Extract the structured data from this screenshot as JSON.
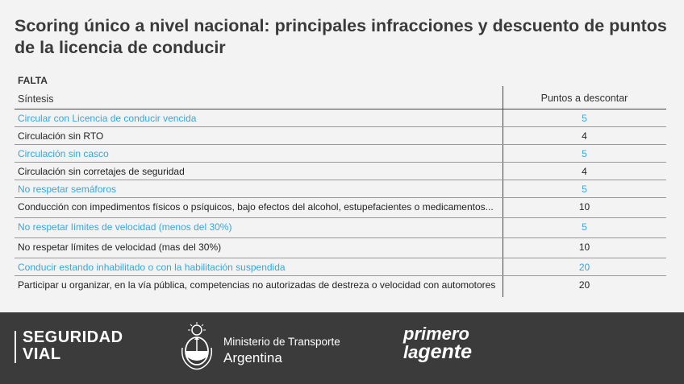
{
  "title": "Scoring único a nivel nacional: principales infracciones y descuento de puntos de la licencia de conducir",
  "table": {
    "group_label": "FALTA",
    "col_sintesis": "Síntesis",
    "col_puntos": "Puntos a descontar",
    "rows": [
      {
        "text": "Circular con Licencia de conducir vencida",
        "points": "5"
      },
      {
        "text": "Circulación sin RTO",
        "points": "4"
      },
      {
        "text": "Circulación sin casco",
        "points": "5"
      },
      {
        "text": "Circulación sin corretajes de seguridad",
        "points": "4"
      },
      {
        "text": "No respetar semáforos",
        "points": "5"
      },
      {
        "text": "Conducción con impedimentos físicos o psíquicos, bajo efectos del alcohol, estupefacientes o medicamentos...",
        "points": "10"
      },
      {
        "text": "No respetar límites de velocidad (menos del 30%)",
        "points": "5"
      },
      {
        "text": "No respetar límites de velocidad (mas del 30%)",
        "points": "10"
      },
      {
        "text": "Conducir estando inhabilitado o con la habilitación suspendida",
        "points": "20"
      },
      {
        "text": "Participar u organizar, en la vía pública, competencias no autorizadas de destreza o velocidad con automotores",
        "points": "20"
      }
    ]
  },
  "footer": {
    "seguridad_line1": "SEGURIDAD",
    "seguridad_line2": "VIAL",
    "ministerio_line1": "Ministerio de Transporte",
    "ministerio_line2": "Argentina",
    "slogan_line1": "primero",
    "slogan_line2a": "la",
    "slogan_line2b": "gente"
  },
  "colors": {
    "accent_blue": "#36a7dc",
    "footer_bg": "#3b3b3b",
    "page_bg": "#f3f3f3"
  },
  "icons": {
    "shield": "argentina-coat-of-arms-icon"
  }
}
